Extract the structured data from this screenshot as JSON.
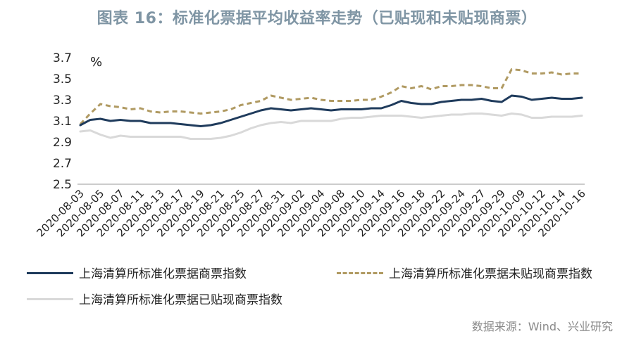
{
  "chart_data": {
    "type": "line",
    "title": "图表 16：标准化票据平均收益率走势（已贴现和未贴现商票）",
    "ylabel": "%",
    "xlabel": "",
    "ylim": [
      2.5,
      3.7
    ],
    "yticks": [
      "3.7",
      "3.5",
      "3.3",
      "3.1",
      "2.9",
      "2.7",
      "2.5"
    ],
    "categories": [
      "2020-08-03",
      "2020-08-04",
      "2020-08-05",
      "2020-08-06",
      "2020-08-07",
      "2020-08-10",
      "2020-08-11",
      "2020-08-12",
      "2020-08-13",
      "2020-08-14",
      "2020-08-17",
      "2020-08-18",
      "2020-08-19",
      "2020-08-20",
      "2020-08-21",
      "2020-08-24",
      "2020-08-25",
      "2020-08-26",
      "2020-08-27",
      "2020-08-28",
      "2020-08-31",
      "2020-09-01",
      "2020-09-02",
      "2020-09-03",
      "2020-09-04",
      "2020-09-07",
      "2020-09-08",
      "2020-09-09",
      "2020-09-10",
      "2020-09-11",
      "2020-09-14",
      "2020-09-15",
      "2020-09-16",
      "2020-09-17",
      "2020-09-18",
      "2020-09-21",
      "2020-09-22",
      "2020-09-23",
      "2020-09-24",
      "2020-09-25",
      "2020-09-27",
      "2020-09-28",
      "2020-09-29",
      "2020-09-30",
      "2020-10-09",
      "2020-10-10",
      "2020-10-12",
      "2020-10-13",
      "2020-10-14",
      "2020-10-15",
      "2020-10-16"
    ],
    "xtick_labels": [
      "2020-08-03",
      "2020-08-05",
      "2020-08-07",
      "2020-08-11",
      "2020-08-13",
      "2020-08-17",
      "2020-08-19",
      "2020-08-21",
      "2020-08-25",
      "2020-08-27",
      "2020-08-31",
      "2020-09-02",
      "2020-09-04",
      "2020-09-08",
      "2020-09-10",
      "2020-09-14",
      "2020-09-16",
      "2020-09-18",
      "2020-09-22",
      "2020-09-24",
      "2020-09-27",
      "2020-09-29",
      "2020-10-09",
      "2020-10-12",
      "2020-10-14",
      "2020-10-16"
    ],
    "series": [
      {
        "name": "上海清算所标准化票据商票指数",
        "color": "#1f3b5c",
        "style": "solid",
        "values": [
          3.06,
          3.11,
          3.12,
          3.1,
          3.11,
          3.1,
          3.1,
          3.08,
          3.08,
          3.08,
          3.07,
          3.06,
          3.05,
          3.06,
          3.08,
          3.11,
          3.14,
          3.17,
          3.2,
          3.22,
          3.21,
          3.2,
          3.21,
          3.22,
          3.21,
          3.2,
          3.21,
          3.21,
          3.21,
          3.22,
          3.22,
          3.25,
          3.29,
          3.27,
          3.26,
          3.26,
          3.28,
          3.29,
          3.3,
          3.3,
          3.31,
          3.29,
          3.28,
          3.34,
          3.33,
          3.3,
          3.31,
          3.32,
          3.31,
          3.31,
          3.32
        ]
      },
      {
        "name": "上海清算所标准化票据未贴现商票指数",
        "color": "#b09a62",
        "style": "dashed",
        "values": [
          3.07,
          3.17,
          3.26,
          3.24,
          3.23,
          3.21,
          3.22,
          3.19,
          3.18,
          3.19,
          3.19,
          3.18,
          3.17,
          3.18,
          3.19,
          3.21,
          3.25,
          3.27,
          3.29,
          3.34,
          3.32,
          3.3,
          3.31,
          3.32,
          3.3,
          3.29,
          3.29,
          3.29,
          3.3,
          3.3,
          3.33,
          3.37,
          3.43,
          3.41,
          3.43,
          3.4,
          3.43,
          3.43,
          3.44,
          3.44,
          3.43,
          3.41,
          3.41,
          3.59,
          3.58,
          3.55,
          3.55,
          3.56,
          3.54,
          3.55,
          3.55
        ]
      },
      {
        "name": "上海清算所标准化票据已贴现商票指数",
        "color": "#d9d9d9",
        "style": "solid",
        "values": [
          3.0,
          3.01,
          2.97,
          2.94,
          2.96,
          2.95,
          2.95,
          2.95,
          2.95,
          2.95,
          2.95,
          2.93,
          2.93,
          2.93,
          2.94,
          2.96,
          2.99,
          3.03,
          3.06,
          3.08,
          3.09,
          3.08,
          3.1,
          3.1,
          3.1,
          3.1,
          3.12,
          3.13,
          3.13,
          3.14,
          3.15,
          3.15,
          3.15,
          3.14,
          3.13,
          3.14,
          3.15,
          3.16,
          3.16,
          3.17,
          3.17,
          3.16,
          3.15,
          3.17,
          3.16,
          3.13,
          3.13,
          3.14,
          3.14,
          3.14,
          3.15
        ]
      }
    ],
    "legend_position": "bottom"
  },
  "source": "数据来源：Wind、兴业研究"
}
